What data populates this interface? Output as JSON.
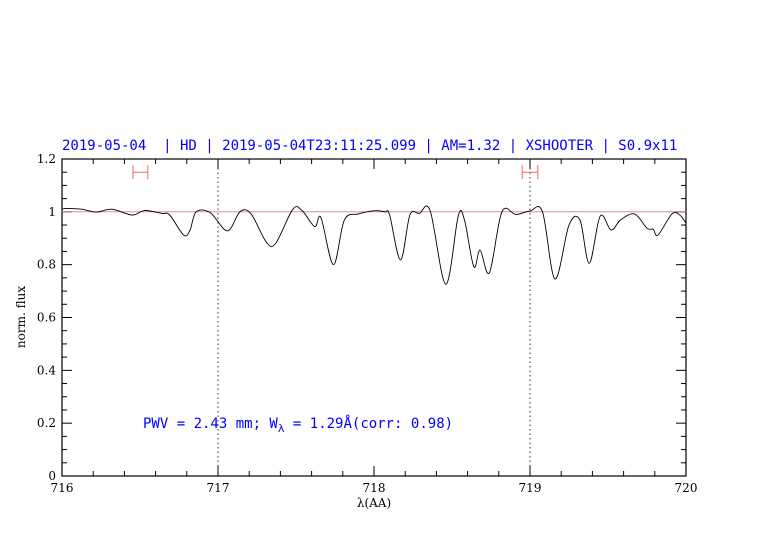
{
  "chart_data": {
    "type": "line",
    "title": "2019-05-04  | HD | 2019-05-04T23:11:25.099 | AM=1.32 | XSHOOTER | S0.9x11",
    "xlabel": "λ(AA)",
    "ylabel": "norm. flux",
    "xlim": [
      716,
      720
    ],
    "ylim": [
      0,
      1.2
    ],
    "xticks": [
      "716",
      "717",
      "718",
      "719",
      "720"
    ],
    "yticks": [
      "0",
      "0.2",
      "0.4",
      "0.6",
      "0.8",
      "1",
      "1.2"
    ],
    "grid": false,
    "annotation": {
      "prefix": "PWV = 2.43 mm; W",
      "sub": "λ",
      "suffix": " = 1.29Å(corr: 0.98)"
    },
    "reference_line": {
      "y": 1,
      "color": "#d08080"
    },
    "vertical_lines": [
      717,
      719
    ],
    "error_bars": [
      {
        "x": [
          716.455,
          716.55
        ],
        "y": 1.15
      },
      {
        "x": [
          718.95,
          719.05
        ],
        "y": 1.15
      }
    ],
    "series": [
      {
        "color": "#000000",
        "x": [
          716.0,
          716.03,
          716.126,
          716.22,
          716.32,
          716.45,
          716.53,
          716.64,
          716.69,
          716.78,
          716.82,
          716.86,
          716.95,
          717.06,
          717.14,
          717.21,
          717.31,
          717.37,
          717.48,
          717.54,
          717.62,
          717.66,
          717.74,
          717.81,
          717.9,
          718.0,
          718.07,
          718.1,
          718.17,
          718.23,
          718.29,
          718.36,
          718.46,
          718.54,
          718.58,
          718.64,
          718.68,
          718.74,
          718.82,
          718.91,
          719.0,
          719.08,
          719.16,
          719.25,
          719.32,
          719.38,
          719.45,
          719.52,
          719.58,
          719.67,
          719.75,
          719.79,
          719.82,
          719.91,
          719.96,
          720.0
        ],
        "y": [
          1.01,
          1.013,
          1.01,
          0.999,
          1.01,
          0.988,
          1.005,
          0.994,
          0.988,
          0.912,
          0.93,
          1.0,
          0.997,
          0.928,
          1.0,
          0.994,
          0.885,
          0.881,
          1.01,
          1.004,
          0.944,
          0.978,
          0.8,
          0.969,
          0.992,
          1.004,
          1.0,
          0.988,
          0.818,
          0.988,
          0.994,
          1.004,
          0.726,
          0.984,
          0.969,
          0.792,
          0.855,
          0.77,
          1.0,
          0.99,
          1.003,
          1.0,
          0.746,
          0.95,
          0.969,
          0.805,
          0.984,
          0.931,
          0.969,
          0.992,
          0.938,
          0.934,
          0.912,
          0.992,
          0.988,
          0.957
        ]
      }
    ],
    "colors": {
      "title": "#0000ff",
      "annotation": "#0000ff",
      "error_bar": "#ff6060"
    }
  }
}
